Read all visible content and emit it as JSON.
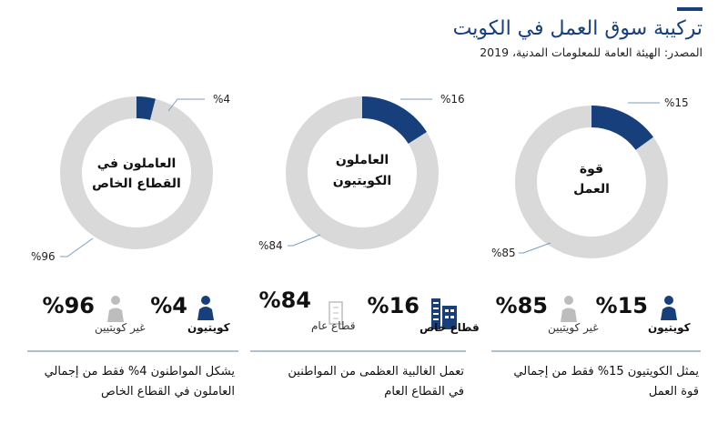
{
  "header": {
    "title": "تركيبة سوق العمل في الكويت",
    "source": "المصدر: الهيئة العامة للمعلومات المدنية، 2019"
  },
  "colors": {
    "accent": "#163f7c",
    "ring_bg": "#d9d9d9",
    "divider": "#7a9cc0",
    "muted_icon": "#bdbdbd"
  },
  "chart_data": [
    {
      "type": "pie",
      "title": "قوة العمل",
      "title_lines": [
        "قوة",
        "العمل"
      ],
      "slices": [
        {
          "name": "كويتيون",
          "value": 15,
          "label": "%15"
        },
        {
          "name": "غير كويتيين",
          "value": 85,
          "label": "%85"
        }
      ],
      "stats": [
        {
          "value": "%15",
          "caption": "كويتيون",
          "icon": "kuwaiti-person-icon"
        },
        {
          "value": "%85",
          "caption": "غير كويتيين",
          "icon": "non-kuwaiti-person-icon"
        }
      ],
      "description_lines": [
        "يمثل الكويتيون 15% فقط من إجمالي",
        "قوة العمل"
      ]
    },
    {
      "type": "pie",
      "title": "العاملون الكويتيون",
      "title_lines": [
        "العاملون",
        "الكويتيون"
      ],
      "slices": [
        {
          "name": "قطاع خاص",
          "value": 16,
          "label": "%16"
        },
        {
          "name": "قطاع عام",
          "value": 84,
          "label": "%84"
        }
      ],
      "stats": [
        {
          "value": "%16",
          "caption": "قطاع خاص",
          "icon": "office-building-icon"
        },
        {
          "value": "%84",
          "caption": "قطاع عام",
          "icon": "government-building-icon"
        }
      ],
      "description_lines": [
        "تعمل الغالبية العظمى من المواطنين",
        "في القطاع العام"
      ]
    },
    {
      "type": "pie",
      "title": "العاملون في القطاع الخاص",
      "title_lines": [
        "العاملون في",
        "القطاع الخاص"
      ],
      "slices": [
        {
          "name": "كويتيون",
          "value": 4,
          "label": "%4"
        },
        {
          "name": "غير كويتيين",
          "value": 96,
          "label": "%96"
        }
      ],
      "stats": [
        {
          "value": "%4",
          "caption": "كويتيون",
          "icon": "kuwaiti-person-icon"
        },
        {
          "value": "%96",
          "caption": "غير كويتيين",
          "icon": "non-kuwaiti-person-icon"
        }
      ],
      "description_lines": [
        "يشكل المواطنون 4% فقط من إجمالي",
        "العاملون في القطاع الخاص"
      ]
    }
  ]
}
